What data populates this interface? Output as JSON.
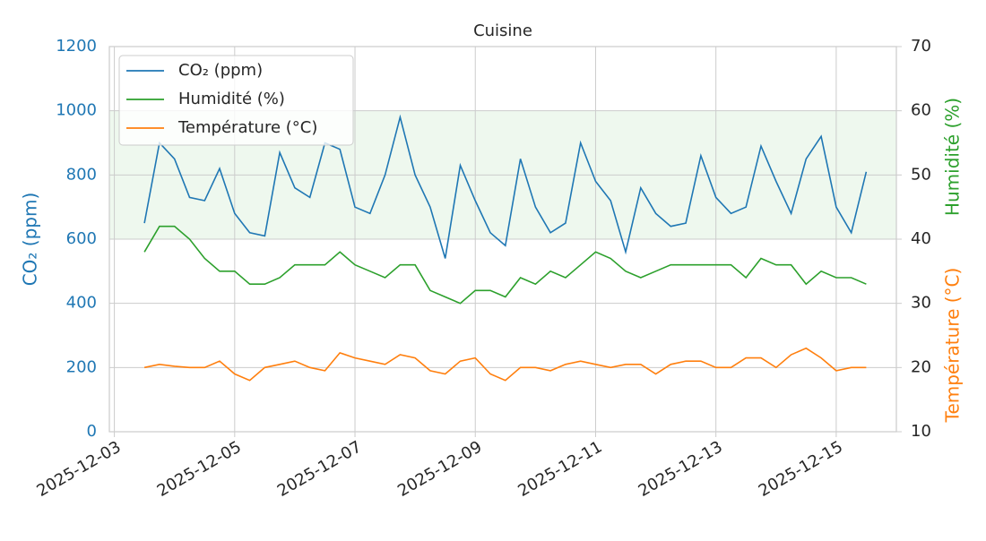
{
  "chart_data": {
    "type": "line",
    "title": "Cuisine",
    "x": [
      "2025-12-03T12:00",
      "2025-12-03T18:00",
      "2025-12-04T00:00",
      "2025-12-04T06:00",
      "2025-12-04T12:00",
      "2025-12-04T18:00",
      "2025-12-05T00:00",
      "2025-12-05T06:00",
      "2025-12-05T12:00",
      "2025-12-05T18:00",
      "2025-12-06T00:00",
      "2025-12-06T06:00",
      "2025-12-06T12:00",
      "2025-12-06T18:00",
      "2025-12-07T00:00",
      "2025-12-07T06:00",
      "2025-12-07T12:00",
      "2025-12-07T18:00",
      "2025-12-08T00:00",
      "2025-12-08T06:00",
      "2025-12-08T12:00",
      "2025-12-08T18:00",
      "2025-12-09T00:00",
      "2025-12-09T06:00",
      "2025-12-09T12:00",
      "2025-12-09T18:00",
      "2025-12-10T00:00",
      "2025-12-10T06:00",
      "2025-12-10T12:00",
      "2025-12-10T18:00",
      "2025-12-11T00:00",
      "2025-12-11T06:00",
      "2025-12-11T12:00",
      "2025-12-11T18:00",
      "2025-12-12T00:00",
      "2025-12-12T06:00",
      "2025-12-12T12:00",
      "2025-12-12T18:00",
      "2025-12-13T00:00",
      "2025-12-13T06:00",
      "2025-12-13T12:00",
      "2025-12-13T18:00",
      "2025-12-14T00:00",
      "2025-12-14T06:00",
      "2025-12-14T12:00",
      "2025-12-14T18:00",
      "2025-12-15T00:00",
      "2025-12-15T06:00",
      "2025-12-15T12:00"
    ],
    "series": [
      {
        "name": "CO₂ (ppm)",
        "color": "#1f77b4",
        "values": [
          650,
          900,
          850,
          730,
          720,
          820,
          680,
          620,
          610,
          870,
          760,
          730,
          900,
          880,
          700,
          680,
          800,
          980,
          800,
          700,
          540,
          830,
          720,
          620,
          580,
          850,
          700,
          620,
          650,
          900,
          780,
          720,
          560,
          760,
          680,
          640,
          650,
          860,
          730,
          680,
          700,
          890,
          780,
          680,
          850,
          920,
          700,
          620,
          810
        ]
      },
      {
        "name": "Humidité (%)",
        "color": "#2ca02c",
        "axis": "y2",
        "values": [
          38,
          42,
          42,
          40,
          37,
          35,
          35,
          33,
          33,
          34,
          36,
          36,
          36,
          38,
          36,
          35,
          34,
          36,
          36,
          32,
          31,
          30,
          32,
          32,
          31,
          34,
          33,
          35,
          34,
          36,
          38,
          37,
          35,
          34,
          35,
          36,
          36,
          36,
          36,
          36,
          34,
          37,
          36,
          36,
          33,
          35,
          34,
          34,
          33
        ]
      },
      {
        "name": "Température (°C)",
        "color": "#ff7f0e",
        "axis": "y2",
        "values": [
          20,
          20.5,
          20.2,
          20,
          20,
          21,
          19,
          18,
          20,
          20.5,
          21,
          20,
          19.5,
          22.3,
          21.5,
          21,
          20.5,
          22,
          21.5,
          19.5,
          19,
          21,
          21.5,
          19,
          18,
          20,
          20,
          19.5,
          20.5,
          21,
          20.5,
          20,
          20.5,
          20.5,
          19,
          20.5,
          21,
          21,
          20,
          20,
          21.5,
          21.5,
          20,
          22,
          23,
          21.5,
          19.5,
          20,
          20
        ]
      }
    ],
    "ylabel": "CO₂ (ppm)",
    "y2labels": [
      "Humidité (%)",
      "Température (°C)"
    ],
    "xlim": [
      "2025-12-02T22:00",
      "2025-12-16T00:00"
    ],
    "xticks": [
      "2025-12-03",
      "2025-12-05",
      "2025-12-07",
      "2025-12-09",
      "2025-12-11",
      "2025-12-13",
      "2025-12-15"
    ],
    "ylim": [
      0,
      1200
    ],
    "yticks": [
      0,
      200,
      400,
      600,
      800,
      1000,
      1200
    ],
    "y2lim": [
      10,
      70
    ],
    "y2ticks": [
      10,
      20,
      30,
      40,
      50,
      60,
      70
    ],
    "shaded_band": {
      "axis": "y2",
      "range": [
        40,
        60
      ],
      "color": "#2ca02c"
    },
    "grid": true,
    "legend": "upper left"
  }
}
